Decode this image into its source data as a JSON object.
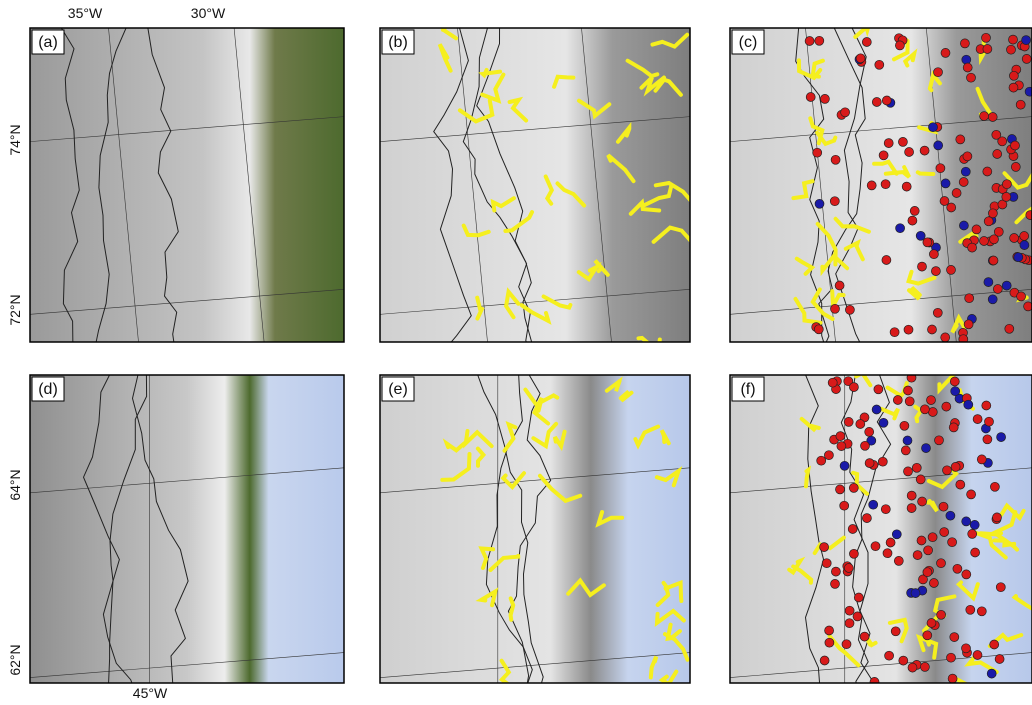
{
  "panels": [
    {
      "label": "(a)"
    },
    {
      "label": "(b)"
    },
    {
      "label": "(c)"
    },
    {
      "label": "(d)"
    },
    {
      "label": "(e)"
    },
    {
      "label": "(f)"
    }
  ],
  "axis_labels": {
    "top": [
      "35°W",
      "30°W"
    ],
    "left_top": [
      "74°N",
      "72°N"
    ],
    "left_bottom": [
      "64°N",
      "62°N"
    ],
    "bottom": [
      "45°W"
    ]
  }
}
